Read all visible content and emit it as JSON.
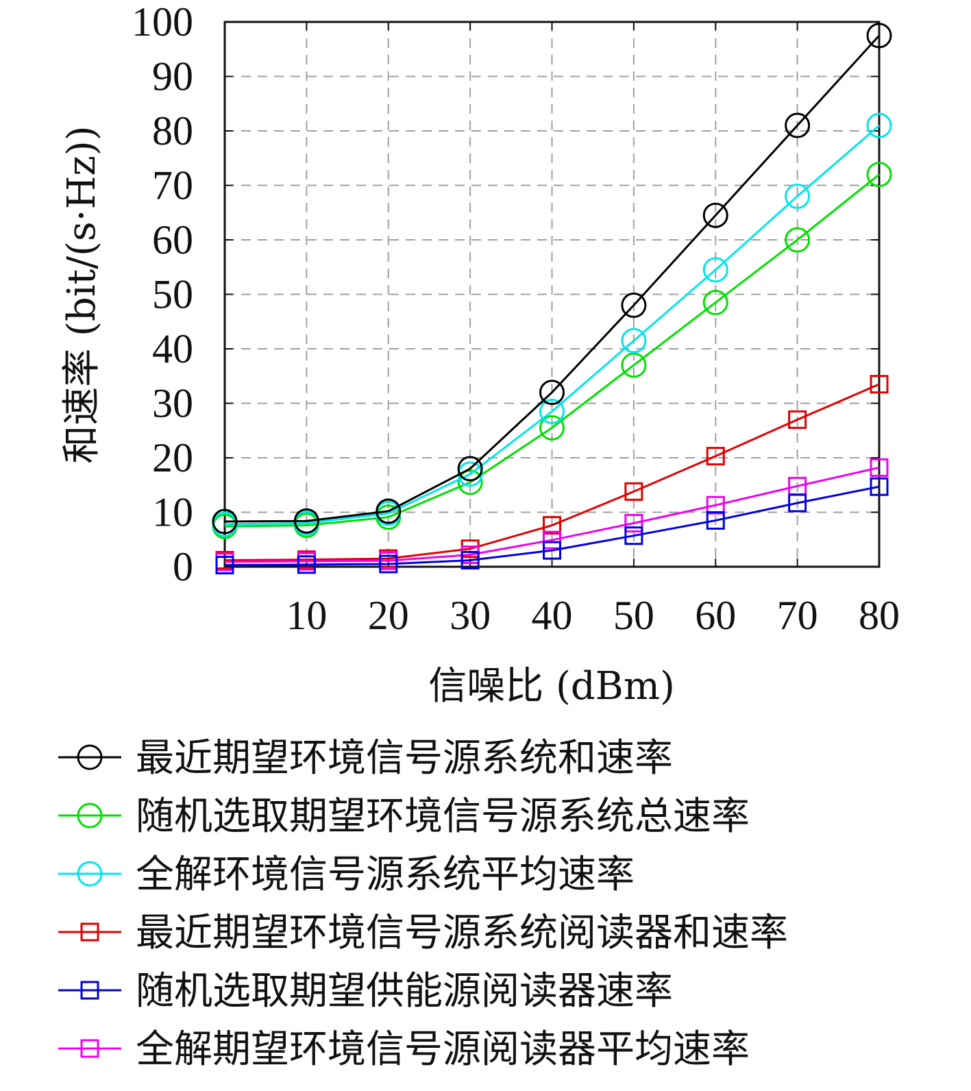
{
  "chart_data": {
    "type": "line",
    "xlabel": "信噪比 (dBm)",
    "ylabel": "和速率 (bit/(s·Hz))",
    "xlim": [
      0,
      80
    ],
    "ylim": [
      0,
      100
    ],
    "xticks": [
      10,
      20,
      30,
      40,
      50,
      60,
      70,
      80
    ],
    "yticks": [
      0,
      10,
      20,
      30,
      40,
      50,
      60,
      70,
      80,
      90,
      100
    ],
    "grid": true,
    "legend_position": "below",
    "x": [
      0,
      10,
      20,
      30,
      40,
      50,
      60,
      70,
      80
    ],
    "series": [
      {
        "name": "最近期望环境信号源系统和速率",
        "color": "#000000",
        "marker": "circle",
        "values": [
          8.3,
          8.4,
          10.2,
          18.0,
          32.0,
          48.0,
          64.5,
          81.0,
          97.5
        ]
      },
      {
        "name": "随机选取期望环境信号源系统总速率",
        "color": "#00e000",
        "marker": "circle",
        "values": [
          7.4,
          7.6,
          9.1,
          15.5,
          25.5,
          37.0,
          48.5,
          60.0,
          72.0
        ]
      },
      {
        "name": "全解环境信号源系统平均速率",
        "color": "#00e5ee",
        "marker": "circle",
        "values": [
          7.8,
          8.0,
          9.8,
          17.0,
          28.5,
          41.5,
          54.5,
          68.0,
          81.0
        ]
      },
      {
        "name": "最近期望环境信号源系统阅读器和速率",
        "color": "#e00000",
        "marker": "square",
        "values": [
          1.2,
          1.3,
          1.5,
          3.3,
          7.6,
          13.8,
          20.3,
          27.0,
          33.5
        ]
      },
      {
        "name": "随机选取期望供能源阅读器速率",
        "color": "#0000e0",
        "marker": "square",
        "values": [
          0.3,
          0.4,
          0.5,
          1.2,
          3.0,
          5.7,
          8.5,
          11.7,
          14.7
        ]
      },
      {
        "name": "全解期望环境信号源阅读器平均速率",
        "color": "#ee00ee",
        "marker": "square",
        "values": [
          0.9,
          1.0,
          1.1,
          2.2,
          4.9,
          8.0,
          11.3,
          14.8,
          18.2
        ]
      }
    ]
  }
}
